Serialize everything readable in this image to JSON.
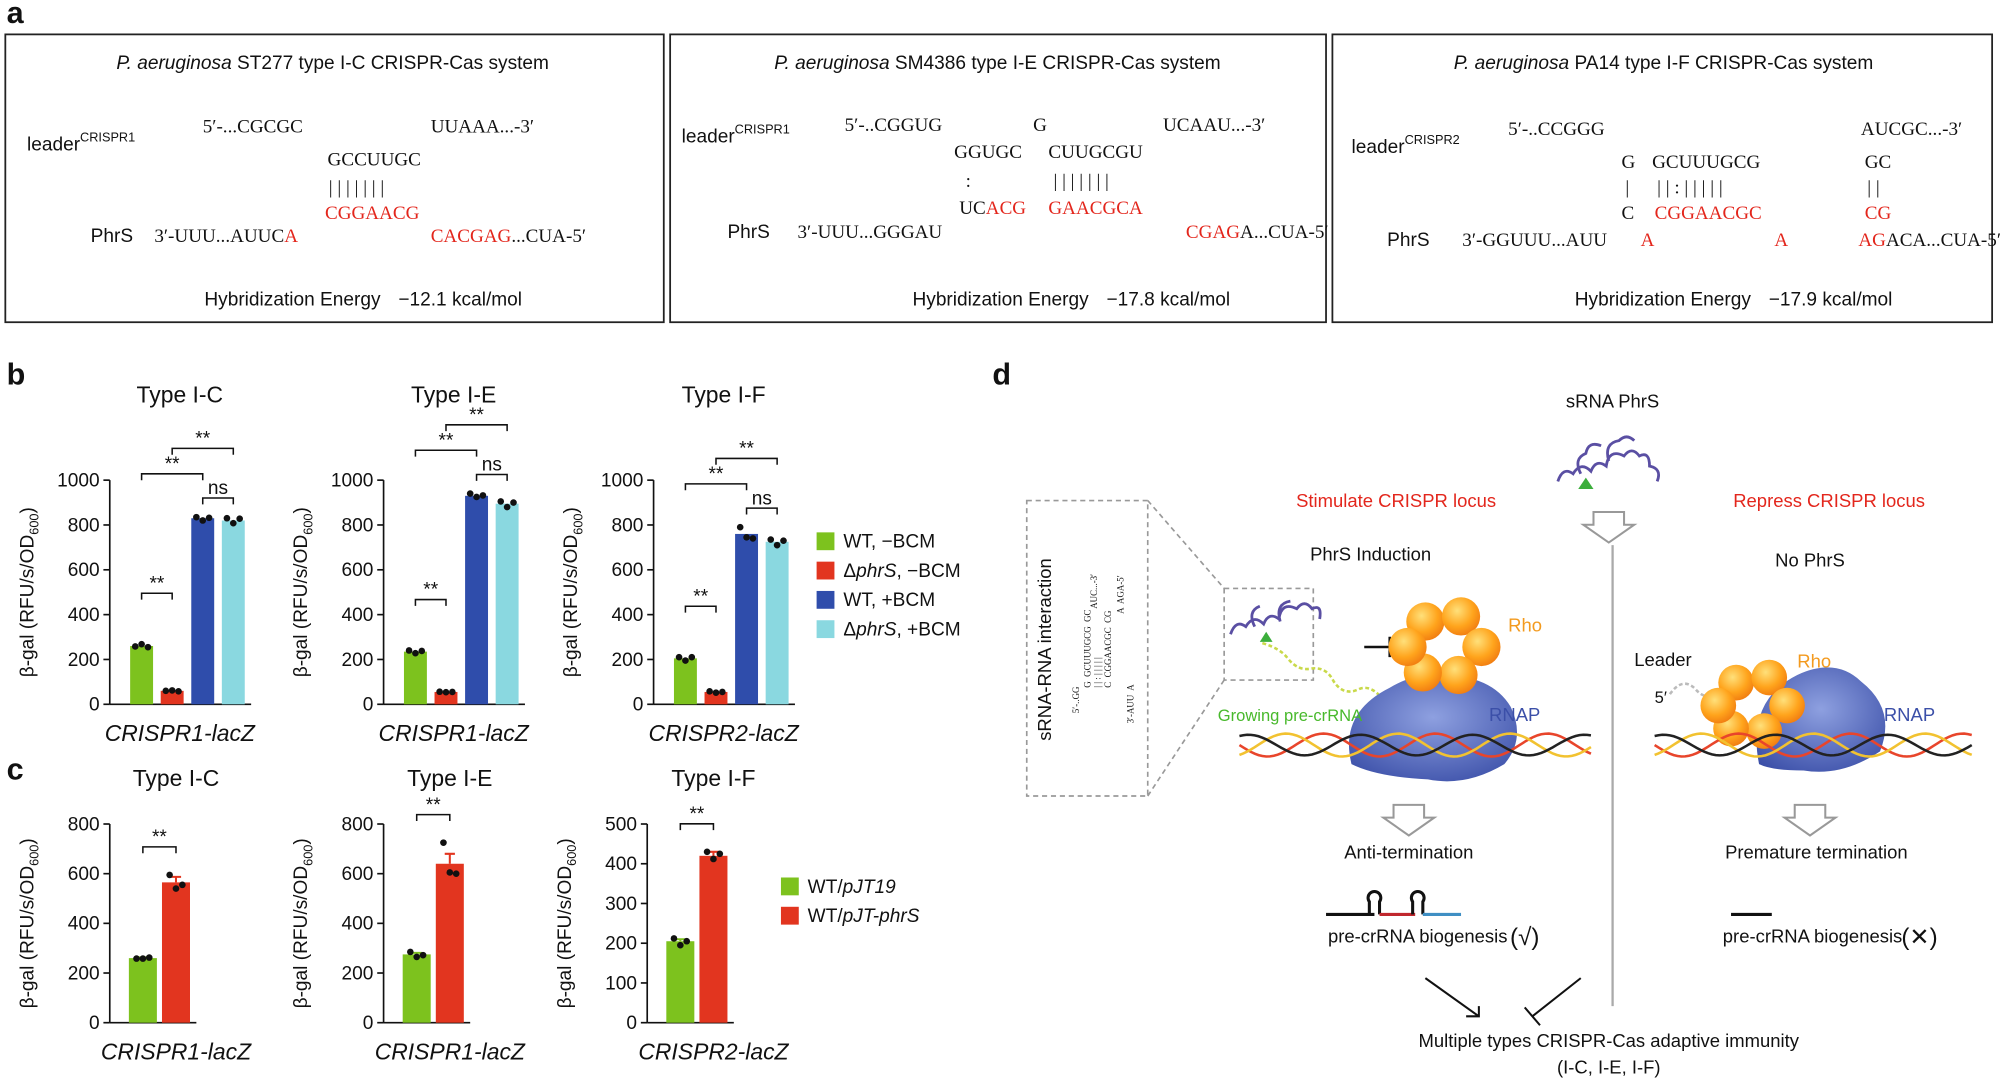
{
  "panel_a": {
    "label": "a",
    "species": "P. aeruginosa",
    "systems": [
      {
        "title": " ST277 type I-C CRISPR-Cas system",
        "leader": "leader",
        "leader_sup": "CRISPR1",
        "phrs": "PhrS",
        "parts": [
          "5′-...CGCGC",
          "UUAAA...-3′",
          "GCCUUGC",
          "| | | | | | |",
          "CGGAACG",
          "3′-UUU...AUUC",
          "A",
          "CACGAG",
          "...CUA-5′"
        ],
        "energy_label": "Hybridization Energy",
        "energy": "−12.1 kcal/mol"
      },
      {
        "title": " SM4386 type I-E CRISPR-Cas system",
        "leader": "leader",
        "leader_sup": "CRISPR1",
        "phrs": "PhrS",
        "parts": [
          "5′-..CGGUG",
          "G",
          "UCAAU...-3′",
          "GGUGC",
          "CUUGCGU",
          ":",
          "| | | | | | |",
          "UC",
          "ACG",
          "GAACGCA",
          "3′-UUU...GGGAU",
          "CGAG",
          "A...CUA-5′"
        ],
        "energy_label": "Hybridization Energy",
        "energy": "−17.8 kcal/mol"
      },
      {
        "title": " PA14 type I-F CRISPR-Cas system",
        "leader": "leader",
        "leader_sup": "CRISPR2",
        "phrs": "PhrS",
        "parts": [
          "5′-..CCGGG",
          "AUCGC...-3′",
          "G",
          "GCUUUGCG",
          "GC",
          "|",
          "| | : | | | | |",
          "| |",
          "C",
          "CGGAACGC",
          "CG",
          "3′-GGUUU...AUU",
          "A",
          "A",
          "AG",
          "ACA...CUA-5′"
        ],
        "energy_label": "Hybridization Energy",
        "energy": "−17.9 kcal/mol"
      }
    ]
  },
  "panel_b": {
    "label": "b",
    "ylabel": "β-gal (RFU/s/OD",
    "ylabel_sub": "600",
    "ylabel_end": ")",
    "legend": [
      {
        "pre": "WT, −BCM",
        "color": "#7dc21e"
      },
      {
        "pre": "Δ",
        "it": "phrS",
        "post": ", −BCM",
        "color": "#e2351f"
      },
      {
        "pre": "WT, +BCM",
        "color": "#2f4dab"
      },
      {
        "pre": "Δ",
        "it": "phrS",
        "post": ", +BCM",
        "color": "#8ad8e0"
      }
    ],
    "charts": [
      {
        "type": "bar",
        "title": "Type I-C",
        "xlabel": "CRISPR1-lacZ",
        "ylim": [
          0,
          1000
        ],
        "yticks": [
          0,
          200,
          400,
          600,
          800,
          1000
        ],
        "values": [
          260,
          60,
          830,
          820
        ],
        "points": [
          [
            258,
            268,
            255
          ],
          [
            60,
            62,
            58
          ],
          [
            835,
            820,
            832
          ],
          [
            830,
            808,
            828
          ]
        ],
        "annotations": [
          "**",
          "**",
          "**",
          "ns"
        ]
      },
      {
        "type": "bar",
        "title": "Type I-E",
        "xlabel": "CRISPR1-lacZ",
        "ylim": [
          0,
          1000
        ],
        "yticks": [
          0,
          200,
          400,
          600,
          800,
          1000
        ],
        "values": [
          235,
          55,
          930,
          895
        ],
        "points": [
          [
            240,
            228,
            238
          ],
          [
            56,
            54,
            55
          ],
          [
            940,
            925,
            932
          ],
          [
            905,
            880,
            900
          ]
        ],
        "annotations": [
          "**",
          "**",
          "**",
          "ns"
        ]
      },
      {
        "type": "bar",
        "title": "Type I-F",
        "xlabel": "CRISPR2-lacZ",
        "ylim": [
          0,
          1000
        ],
        "yticks": [
          0,
          200,
          400,
          600,
          800,
          1000
        ],
        "values": [
          205,
          55,
          760,
          725
        ],
        "points": [
          [
            210,
            195,
            210
          ],
          [
            58,
            52,
            55
          ],
          [
            790,
            745,
            740
          ],
          [
            735,
            710,
            730
          ]
        ],
        "annotations": [
          "**",
          "**",
          "**",
          "ns"
        ]
      }
    ]
  },
  "panel_c": {
    "label": "c",
    "ylabel": "β-gal (RFU/s/OD",
    "ylabel_sub": "600",
    "ylabel_end": ")",
    "legend": [
      {
        "pre": "WT/",
        "it": "pJT19",
        "color": "#7dc21e"
      },
      {
        "pre": "WT/",
        "it": "pJT-phrS",
        "color": "#e2351f"
      }
    ],
    "charts": [
      {
        "type": "bar",
        "title": "Type I-C",
        "xlabel": "CRISPR1-lacZ",
        "ylim": [
          0,
          800
        ],
        "yticks": [
          0,
          200,
          400,
          600,
          800
        ],
        "values": [
          260,
          565
        ],
        "errors": [
          3,
          22
        ],
        "points": [
          [
            258,
            258,
            262
          ],
          [
            595,
            540,
            555
          ]
        ],
        "annotations": [
          "**"
        ]
      },
      {
        "type": "bar",
        "title": "Type I-E",
        "xlabel": "CRISPR1-lacZ",
        "ylim": [
          0,
          800
        ],
        "yticks": [
          0,
          200,
          400,
          600,
          800
        ],
        "values": [
          275,
          640
        ],
        "errors": [
          6,
          40
        ],
        "points": [
          [
            285,
            265,
            272
          ],
          [
            725,
            605,
            600
          ]
        ],
        "annotations": [
          "**"
        ]
      },
      {
        "type": "bar",
        "title": "Type I-F",
        "xlabel": "CRISPR2-lacZ",
        "ylim": [
          0,
          500
        ],
        "yticks": [
          0,
          100,
          200,
          300,
          400,
          500
        ],
        "values": [
          205,
          420
        ],
        "errors": [
          5,
          10
        ],
        "points": [
          [
            212,
            195,
            205
          ],
          [
            430,
            412,
            425
          ]
        ],
        "annotations": [
          "**"
        ]
      }
    ]
  },
  "panel_d": {
    "label": "d",
    "srna": "sRNA PhrS",
    "stimulate": "Stimulate CRISPR locus",
    "repress": "Repress CRISPR locus",
    "induction": "PhrS Induction",
    "no_phrs": "No PhrS",
    "inset_title": "sRNA-RNA interaction",
    "inset_lines": [
      "5′-..GG",
      "G  GCUUUGCG  GC",
      "| | : | | | | |",
      "C  CGGAACGC  CG",
      "AUC...-3′",
      "3′-AUU  A",
      "A  AGA-5′"
    ],
    "rho": "Rho",
    "rnap": "RNAP",
    "growing": "Growing pre-crRNA",
    "leader": "Leader",
    "five_prime": "5′",
    "anti": "Anti-termination",
    "premature": "Premature termination",
    "biogenesis": "pre-crRNA biogenesis",
    "yes": "(√)",
    "no": "(✕)",
    "immunity": "Multiple types CRISPR-Cas adaptive immunity",
    "immunity_types": "(I-C, I-E, I-F)"
  }
}
